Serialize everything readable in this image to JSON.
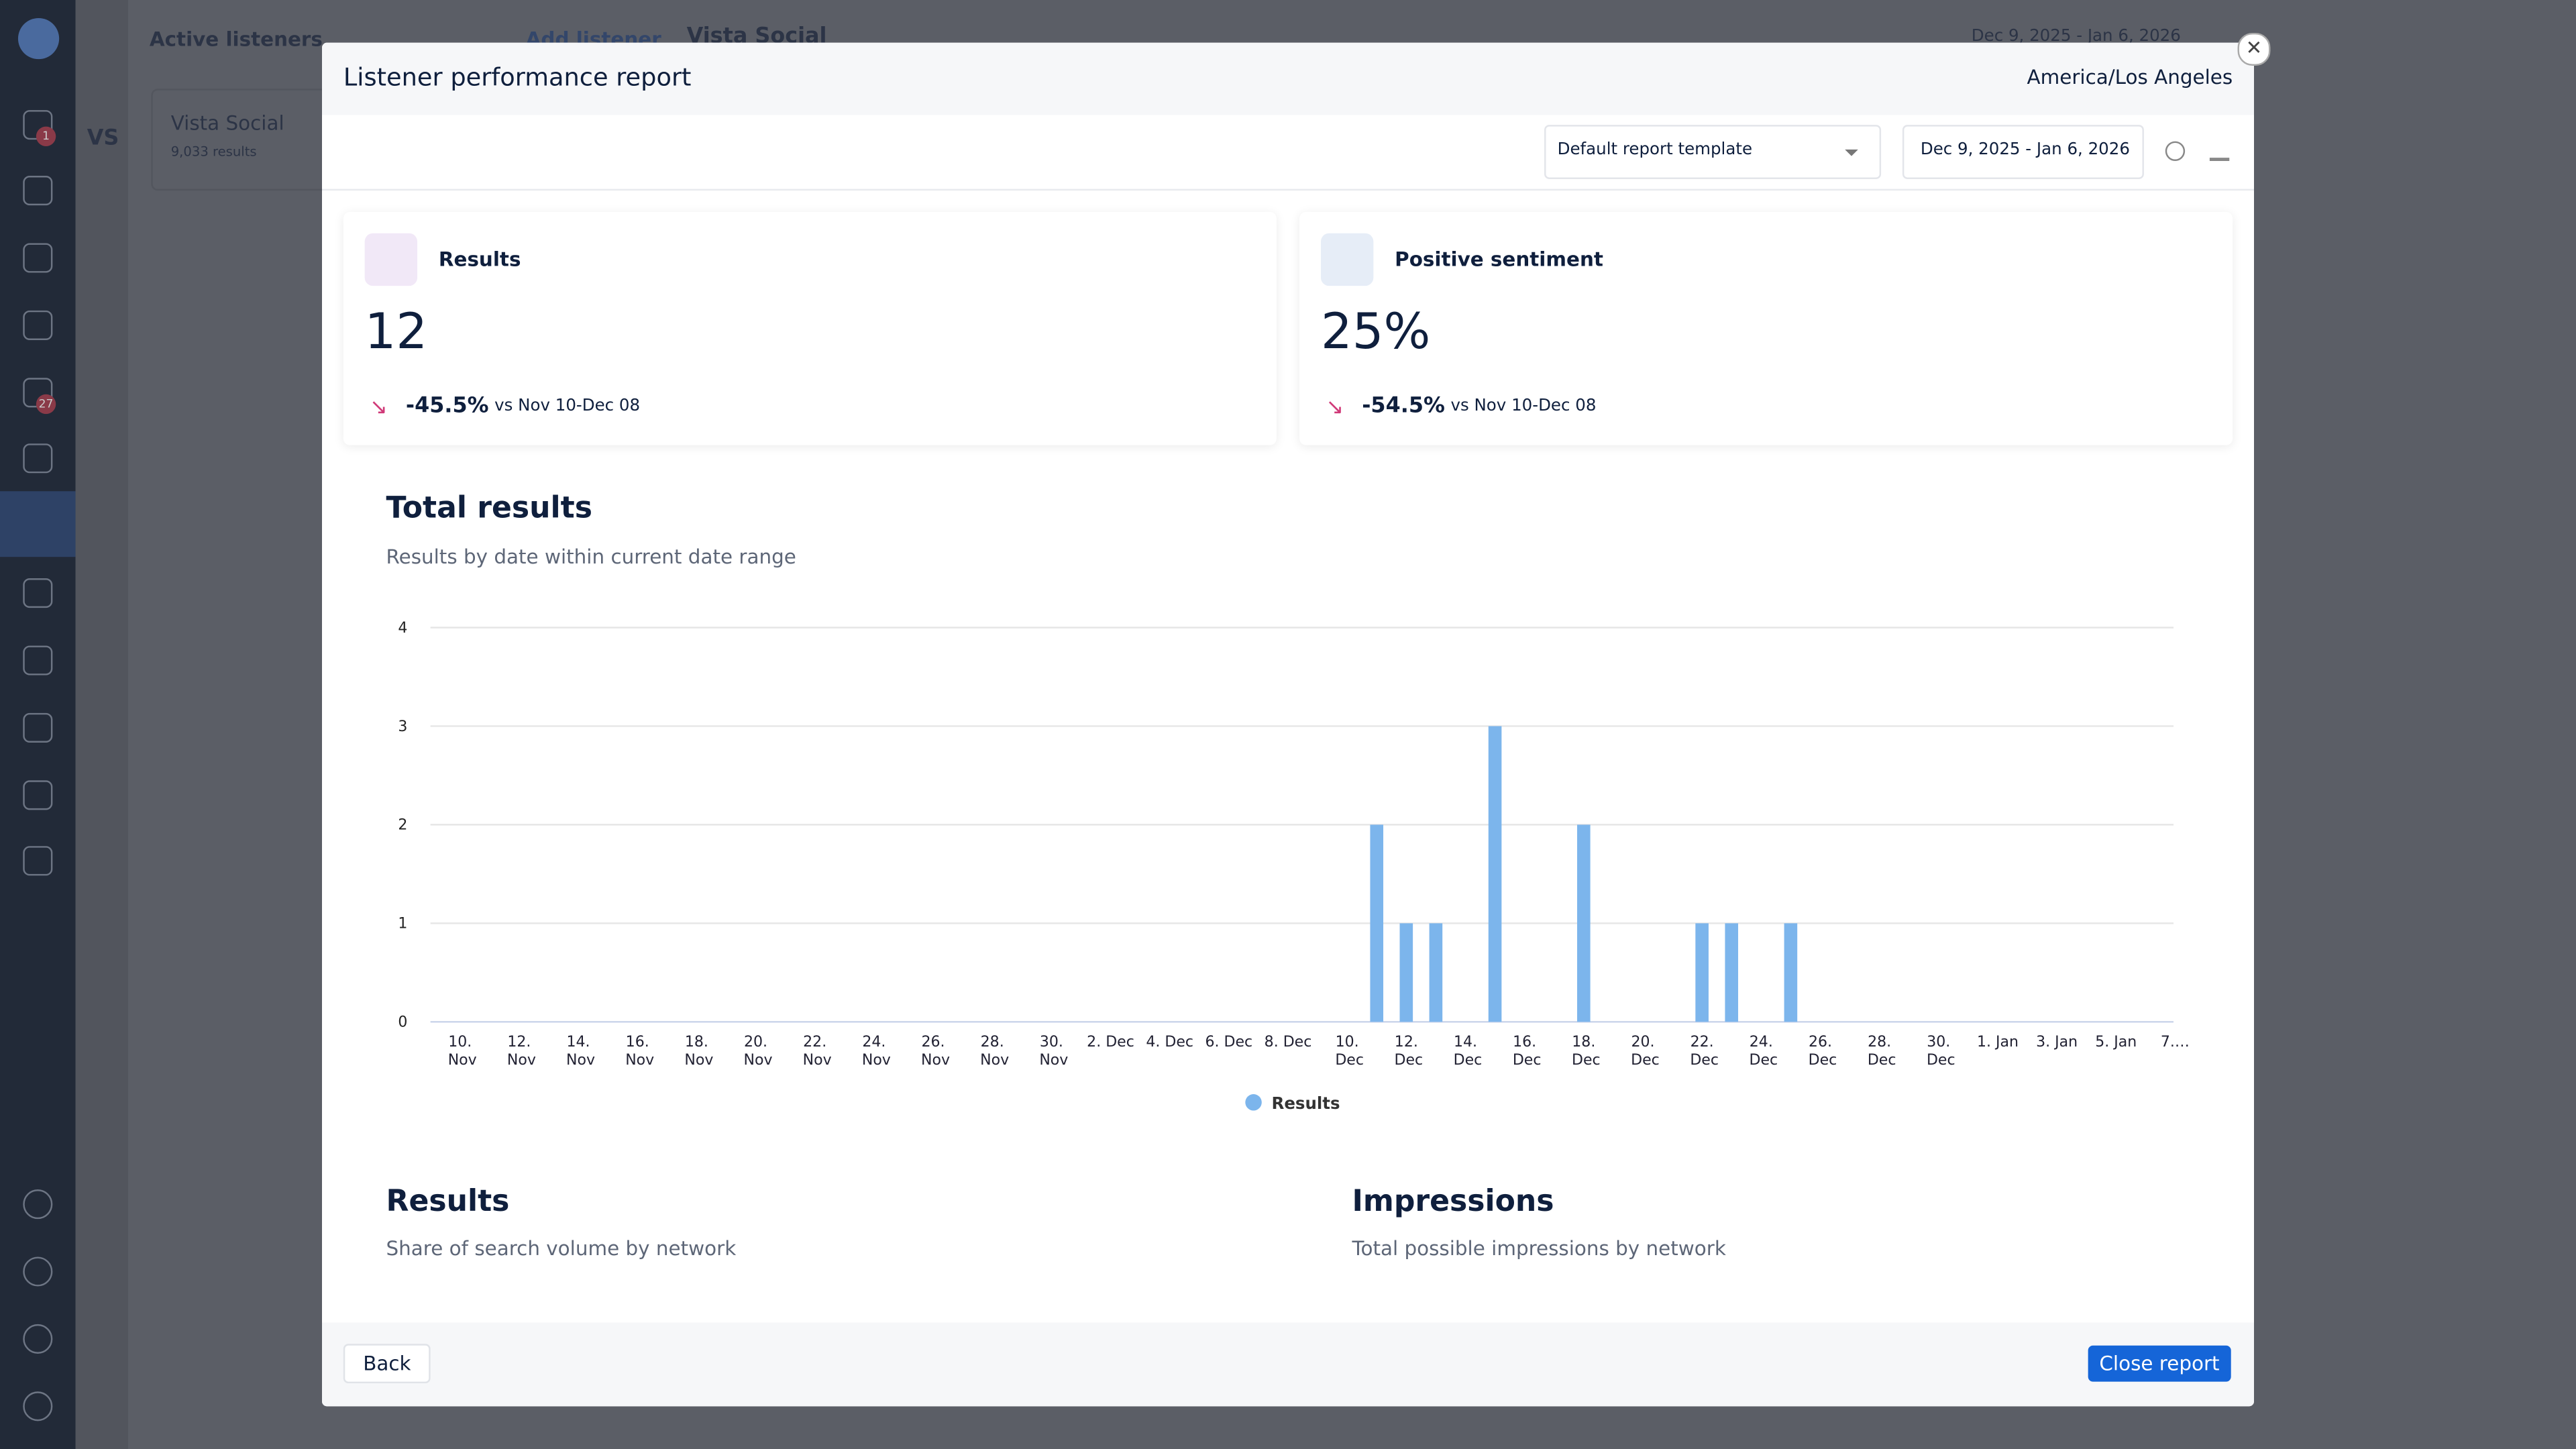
{
  "background": {
    "listeners_label": "Active listeners",
    "add_listener": "Add listener",
    "page_title": "Vista Social",
    "date_range": "Dec 9, 2025 - Jan 6, 2026",
    "workspace": "VS",
    "listener_name": "Vista Social",
    "listener_results": "9,033 results",
    "badges": [
      "1",
      "27"
    ]
  },
  "modal": {
    "title": "Listener performance report",
    "timezone": "America/Los Angeles",
    "template": "Default report template",
    "date_range": "Dec 9, 2025 - Jan 6, 2026",
    "cards": [
      {
        "label": "Results",
        "value": "12",
        "change": "-45.5%",
        "comparison": "vs Nov 10-Dec 08"
      },
      {
        "label": "Positive sentiment",
        "value": "25%",
        "change": "-54.5%",
        "comparison": "vs Nov 10-Dec 08"
      }
    ],
    "sections": [
      {
        "title": "Results",
        "subtitle": "Share of search volume by network"
      },
      {
        "title": "Impressions",
        "subtitle": "Total possible impressions by network"
      }
    ],
    "back": "Back",
    "close": "Close report"
  },
  "chart_data": {
    "type": "bar",
    "title": "Total results",
    "subtitle": "Results by date within current date range",
    "categories": [
      "10. Nov",
      null,
      "12. Nov",
      null,
      "14. Nov",
      null,
      "16. Nov",
      null,
      "18. Nov",
      null,
      "20. Nov",
      null,
      "22. Nov",
      null,
      "24. Nov",
      null,
      "26. Nov",
      null,
      "28. Nov",
      null,
      "30. Nov",
      null,
      "2. Dec",
      null,
      "4. Dec",
      null,
      "6. Dec",
      null,
      "8. Dec",
      null,
      "10. Dec",
      null,
      "12. Dec",
      null,
      "14. Dec",
      null,
      "16. Dec",
      null,
      "18. Dec",
      null,
      "20. Dec",
      null,
      "22. Dec",
      null,
      "24. Dec",
      null,
      "26. Dec",
      null,
      "28. Dec",
      null,
      "30. Dec",
      null,
      "1. Jan",
      null,
      "3. Jan",
      null,
      "5. Jan",
      null,
      "7.…"
    ],
    "series": [
      {
        "name": "Results",
        "color": "#7cb5ec",
        "values": [
          0,
          0,
          0,
          0,
          0,
          0,
          0,
          0,
          0,
          0,
          0,
          0,
          0,
          0,
          0,
          0,
          0,
          0,
          0,
          0,
          0,
          0,
          0,
          0,
          0,
          0,
          0,
          0,
          0,
          0,
          0,
          2,
          1,
          1,
          0,
          3,
          0,
          0,
          2,
          0,
          0,
          0,
          1,
          1,
          0,
          1,
          0,
          0,
          0,
          0,
          0,
          0,
          0,
          0,
          0,
          0,
          0,
          0,
          0
        ]
      }
    ],
    "ylim": [
      0,
      4
    ],
    "yticks": [
      0,
      1,
      2,
      3,
      4
    ],
    "grid": true,
    "legend": "bottom"
  }
}
